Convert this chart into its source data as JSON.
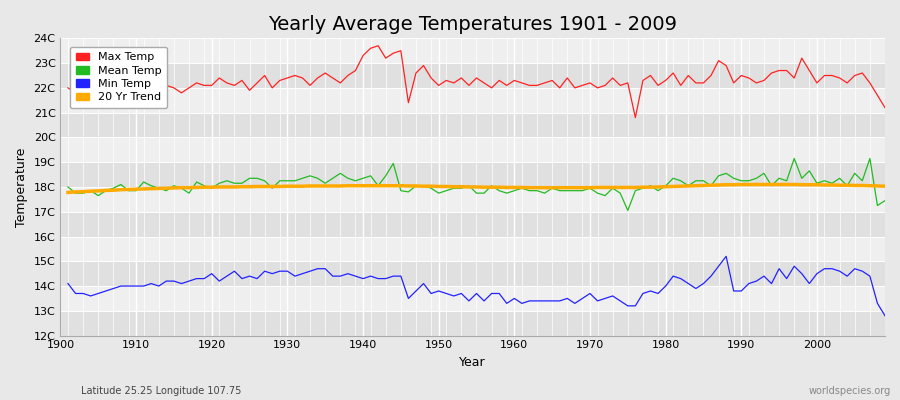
{
  "title": "Yearly Average Temperatures 1901 - 2009",
  "xlabel": "Year",
  "ylabel": "Temperature",
  "footnote_left": "Latitude 25.25 Longitude 107.75",
  "footnote_right": "worldspecies.org",
  "years": [
    1901,
    1902,
    1903,
    1904,
    1905,
    1906,
    1907,
    1908,
    1909,
    1910,
    1911,
    1912,
    1913,
    1914,
    1915,
    1916,
    1917,
    1918,
    1919,
    1920,
    1921,
    1922,
    1923,
    1924,
    1925,
    1926,
    1927,
    1928,
    1929,
    1930,
    1931,
    1932,
    1933,
    1934,
    1935,
    1936,
    1937,
    1938,
    1939,
    1940,
    1941,
    1942,
    1943,
    1944,
    1945,
    1946,
    1947,
    1948,
    1949,
    1950,
    1951,
    1952,
    1953,
    1954,
    1955,
    1956,
    1957,
    1958,
    1959,
    1960,
    1961,
    1962,
    1963,
    1964,
    1965,
    1966,
    1967,
    1968,
    1969,
    1970,
    1971,
    1972,
    1973,
    1974,
    1975,
    1976,
    1977,
    1978,
    1979,
    1980,
    1981,
    1982,
    1983,
    1984,
    1985,
    1986,
    1987,
    1988,
    1989,
    1990,
    1991,
    1992,
    1993,
    1994,
    1995,
    1996,
    1997,
    1998,
    1999,
    2000,
    2001,
    2002,
    2003,
    2004,
    2005,
    2006,
    2007,
    2008,
    2009
  ],
  "max_temp": [
    22.0,
    21.8,
    21.7,
    21.6,
    21.7,
    21.8,
    22.0,
    22.1,
    21.9,
    21.8,
    22.3,
    22.4,
    22.2,
    22.1,
    22.0,
    21.8,
    22.0,
    22.2,
    22.1,
    22.1,
    22.4,
    22.2,
    22.1,
    22.3,
    21.9,
    22.2,
    22.5,
    22.0,
    22.3,
    22.4,
    22.5,
    22.4,
    22.1,
    22.4,
    22.6,
    22.4,
    22.2,
    22.5,
    22.7,
    23.3,
    23.6,
    23.7,
    23.2,
    23.4,
    23.5,
    21.4,
    22.6,
    22.9,
    22.4,
    22.1,
    22.3,
    22.2,
    22.4,
    22.1,
    22.4,
    22.2,
    22.0,
    22.3,
    22.1,
    22.3,
    22.2,
    22.1,
    22.1,
    22.2,
    22.3,
    22.0,
    22.4,
    22.0,
    22.1,
    22.2,
    22.0,
    22.1,
    22.4,
    22.1,
    22.2,
    20.8,
    22.3,
    22.5,
    22.1,
    22.3,
    22.6,
    22.1,
    22.5,
    22.2,
    22.2,
    22.5,
    23.1,
    22.9,
    22.2,
    22.5,
    22.4,
    22.2,
    22.3,
    22.6,
    22.7,
    22.7,
    22.4,
    23.2,
    22.7,
    22.2,
    22.5,
    22.5,
    22.4,
    22.2,
    22.5,
    22.6,
    22.2,
    21.7,
    21.2
  ],
  "mean_temp": [
    18.0,
    17.75,
    17.75,
    17.85,
    17.65,
    17.85,
    17.95,
    18.1,
    17.85,
    17.85,
    18.2,
    18.05,
    17.95,
    17.85,
    18.05,
    17.95,
    17.75,
    18.2,
    18.05,
    17.95,
    18.15,
    18.25,
    18.15,
    18.15,
    18.35,
    18.35,
    18.25,
    17.95,
    18.25,
    18.25,
    18.25,
    18.35,
    18.45,
    18.35,
    18.15,
    18.35,
    18.55,
    18.35,
    18.25,
    18.35,
    18.45,
    18.05,
    18.45,
    18.95,
    17.85,
    17.8,
    18.05,
    18.05,
    17.95,
    17.75,
    17.85,
    17.95,
    17.95,
    18.05,
    17.75,
    17.75,
    18.05,
    17.85,
    17.75,
    17.85,
    17.95,
    17.85,
    17.85,
    17.75,
    17.95,
    17.85,
    17.85,
    17.85,
    17.85,
    17.95,
    17.75,
    17.65,
    17.95,
    17.75,
    17.05,
    17.85,
    17.95,
    18.05,
    17.85,
    18.05,
    18.35,
    18.25,
    18.05,
    18.25,
    18.25,
    18.05,
    18.45,
    18.55,
    18.35,
    18.25,
    18.25,
    18.35,
    18.55,
    18.05,
    18.35,
    18.25,
    19.15,
    18.35,
    18.65,
    18.15,
    18.25,
    18.15,
    18.35,
    18.05,
    18.55,
    18.25,
    19.15,
    17.25,
    17.45
  ],
  "min_temp": [
    14.1,
    13.7,
    13.7,
    13.6,
    13.7,
    13.8,
    13.9,
    14.0,
    14.0,
    14.0,
    14.0,
    14.1,
    14.0,
    14.2,
    14.2,
    14.1,
    14.2,
    14.3,
    14.3,
    14.5,
    14.2,
    14.4,
    14.6,
    14.3,
    14.4,
    14.3,
    14.6,
    14.5,
    14.6,
    14.6,
    14.4,
    14.5,
    14.6,
    14.7,
    14.7,
    14.4,
    14.4,
    14.5,
    14.4,
    14.3,
    14.4,
    14.3,
    14.3,
    14.4,
    14.4,
    13.5,
    13.8,
    14.1,
    13.7,
    13.8,
    13.7,
    13.6,
    13.7,
    13.4,
    13.7,
    13.4,
    13.7,
    13.7,
    13.3,
    13.5,
    13.3,
    13.4,
    13.4,
    13.4,
    13.4,
    13.4,
    13.5,
    13.3,
    13.5,
    13.7,
    13.4,
    13.5,
    13.6,
    13.4,
    13.2,
    13.2,
    13.7,
    13.8,
    13.7,
    14.0,
    14.4,
    14.3,
    14.1,
    13.9,
    14.1,
    14.4,
    14.8,
    15.2,
    13.8,
    13.8,
    14.1,
    14.2,
    14.4,
    14.1,
    14.7,
    14.3,
    14.8,
    14.5,
    14.1,
    14.5,
    14.7,
    14.7,
    14.6,
    14.4,
    14.7,
    14.6,
    14.4,
    13.3,
    12.8
  ],
  "trend": [
    17.78,
    17.8,
    17.81,
    17.83,
    17.84,
    17.86,
    17.87,
    17.89,
    17.9,
    17.91,
    17.92,
    17.93,
    17.94,
    17.95,
    17.96,
    17.97,
    17.97,
    17.98,
    17.99,
    17.99,
    18.0,
    18.0,
    18.0,
    18.01,
    18.01,
    18.02,
    18.02,
    18.02,
    18.02,
    18.03,
    18.03,
    18.03,
    18.04,
    18.04,
    18.04,
    18.04,
    18.04,
    18.05,
    18.05,
    18.05,
    18.05,
    18.05,
    18.05,
    18.05,
    18.05,
    18.04,
    18.04,
    18.03,
    18.03,
    18.02,
    18.02,
    18.01,
    18.01,
    18.0,
    18.0,
    17.99,
    17.99,
    17.99,
    17.98,
    17.98,
    17.98,
    17.97,
    17.97,
    17.97,
    17.97,
    17.97,
    17.97,
    17.97,
    17.97,
    17.97,
    17.98,
    17.98,
    17.98,
    17.98,
    17.98,
    17.98,
    17.99,
    17.99,
    18.0,
    18.01,
    18.02,
    18.03,
    18.04,
    18.05,
    18.06,
    18.07,
    18.08,
    18.09,
    18.09,
    18.1,
    18.1,
    18.1,
    18.1,
    18.1,
    18.1,
    18.1,
    18.1,
    18.09,
    18.09,
    18.09,
    18.08,
    18.08,
    18.07,
    18.07,
    18.06,
    18.06,
    18.05,
    18.04,
    18.03
  ],
  "bg_color": "#e8e8e8",
  "plot_bg_light": "#efefef",
  "plot_bg_dark": "#e0e0e0",
  "grid_color": "#ffffff",
  "max_color": "#ff2222",
  "mean_color": "#22bb22",
  "min_color": "#2222ff",
  "trend_color": "#ffaa00",
  "ylim": [
    12,
    24
  ],
  "yticks": [
    12,
    13,
    14,
    15,
    16,
    17,
    18,
    19,
    20,
    21,
    22,
    23,
    24
  ],
  "ytick_labels": [
    "12C",
    "13C",
    "14C",
    "15C",
    "16C",
    "17C",
    "18C",
    "19C",
    "20C",
    "21C",
    "22C",
    "23C",
    "24C"
  ],
  "xticks": [
    1900,
    1910,
    1920,
    1930,
    1940,
    1950,
    1960,
    1970,
    1980,
    1990,
    2000
  ],
  "xlim_left": 1901,
  "xlim_right": 2009,
  "legend_labels": [
    "Max Temp",
    "Mean Temp",
    "Min Temp",
    "20 Yr Trend"
  ],
  "legend_colors": [
    "#ff2222",
    "#22bb22",
    "#2222ff",
    "#ffaa00"
  ],
  "title_fontsize": 14,
  "axis_fontsize": 9,
  "tick_fontsize": 8,
  "legend_fontsize": 8
}
